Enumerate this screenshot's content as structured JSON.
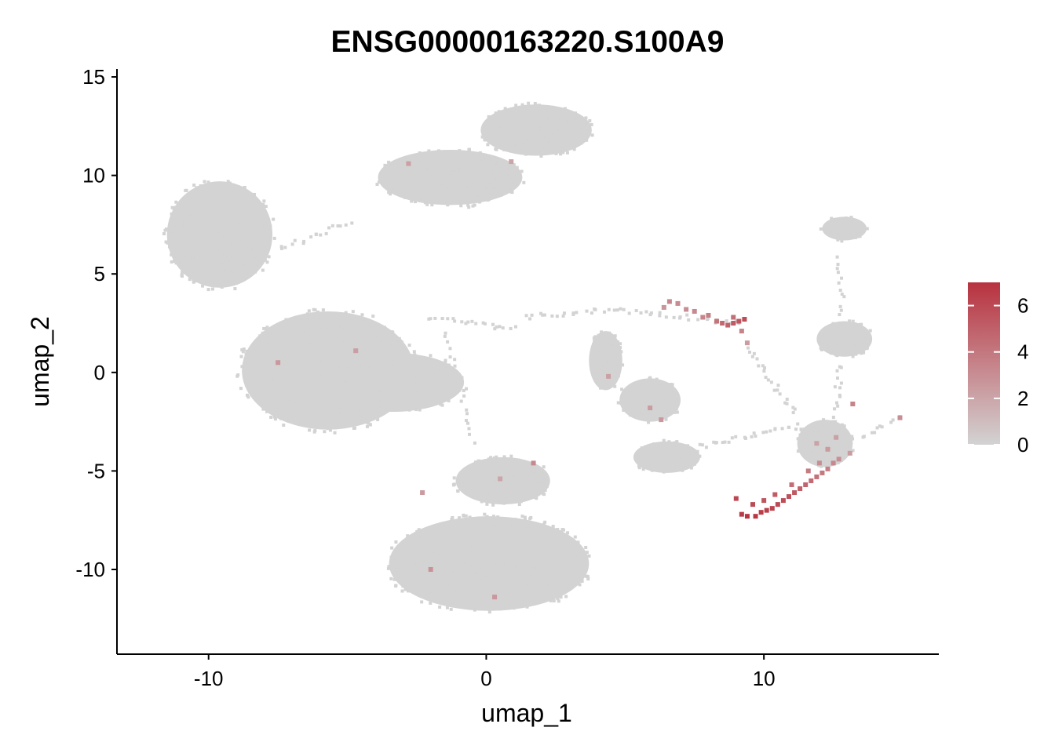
{
  "chart_data": {
    "type": "scatter",
    "title": "ENSG00000163220.S100A9",
    "xlabel": "umap_1",
    "ylabel": "umap_2",
    "xlim": [
      -13.3,
      16.3
    ],
    "ylim": [
      -14.3,
      15.4
    ],
    "xticks": [
      -10,
      0,
      10
    ],
    "xtick_labels": [
      "-10",
      "0",
      "10"
    ],
    "yticks": [
      -10,
      -5,
      0,
      5,
      10,
      15
    ],
    "ytick_labels": [
      "-10",
      "-5",
      "0",
      "5",
      "10",
      "15"
    ],
    "grid": false,
    "legend_position": "right",
    "color_scale": {
      "low_color": "#d3d3d3",
      "high_color": "#b8323f",
      "min": 0,
      "max": 7,
      "ticks": [
        0,
        2,
        4,
        6
      ],
      "tick_labels": [
        "0",
        "2",
        "4",
        "6"
      ]
    },
    "clusters": [
      {
        "name": "c1",
        "cx": -9.6,
        "cy": 7.0,
        "rx": 1.9,
        "ry": 2.7,
        "n": 300
      },
      {
        "name": "c2",
        "cx": -1.3,
        "cy": 9.9,
        "rx": 2.6,
        "ry": 1.4,
        "n": 220
      },
      {
        "name": "c3",
        "cx": 1.8,
        "cy": 12.3,
        "rx": 2.0,
        "ry": 1.3,
        "n": 200
      },
      {
        "name": "c4",
        "cx": -5.7,
        "cy": 0.1,
        "rx": 3.1,
        "ry": 3.0,
        "n": 400
      },
      {
        "name": "c5",
        "cx": -3.4,
        "cy": -0.5,
        "rx": 2.6,
        "ry": 1.5,
        "n": 160
      },
      {
        "name": "c6",
        "cx": 0.1,
        "cy": -9.7,
        "rx": 3.6,
        "ry": 2.4,
        "n": 360
      },
      {
        "name": "c7",
        "cx": 0.6,
        "cy": -5.5,
        "rx": 1.7,
        "ry": 1.2,
        "n": 120
      },
      {
        "name": "c8",
        "cx": 5.9,
        "cy": -1.4,
        "rx": 1.1,
        "ry": 1.1,
        "n": 80
      },
      {
        "name": "c9",
        "cx": 4.3,
        "cy": 0.6,
        "rx": 0.6,
        "ry": 1.5,
        "n": 60
      },
      {
        "name": "c10",
        "cx": 6.5,
        "cy": -4.3,
        "rx": 1.2,
        "ry": 0.8,
        "n": 70
      },
      {
        "name": "c11",
        "cx": 12.9,
        "cy": 1.7,
        "rx": 1.0,
        "ry": 0.9,
        "n": 80
      },
      {
        "name": "c12",
        "cx": 12.9,
        "cy": 7.3,
        "rx": 0.8,
        "ry": 0.6,
        "n": 50
      },
      {
        "name": "c13",
        "cx": 12.2,
        "cy": -3.6,
        "rx": 1.0,
        "ry": 1.2,
        "n": 110
      }
    ],
    "connectors": [
      {
        "from": [
          -7.5,
          6.2
        ],
        "to": [
          -4.8,
          7.7
        ],
        "n": 18
      },
      {
        "from": [
          -0.8,
          8.3
        ],
        "to": [
          0.9,
          9.3
        ],
        "n": 14
      },
      {
        "from": [
          -2.2,
          2.8
        ],
        "to": [
          1.1,
          2.2
        ],
        "n": 22
      },
      {
        "from": [
          -1.5,
          2.2
        ],
        "to": [
          -0.5,
          -3.7
        ],
        "n": 20
      },
      {
        "from": [
          1.3,
          2.8
        ],
        "to": [
          4.6,
          3.2
        ],
        "n": 20
      },
      {
        "from": [
          4.6,
          3.2
        ],
        "to": [
          9.3,
          2.5
        ],
        "n": 28
      },
      {
        "from": [
          7.6,
          -3.8
        ],
        "to": [
          11.3,
          -2.7
        ],
        "n": 26
      },
      {
        "from": [
          9.4,
          1.3
        ],
        "to": [
          11.2,
          -2.2
        ],
        "n": 22
      },
      {
        "from": [
          12.5,
          -2.5
        ],
        "to": [
          12.8,
          0.5
        ],
        "n": 14
      },
      {
        "from": [
          12.8,
          2.8
        ],
        "to": [
          12.7,
          6.0
        ],
        "n": 12
      },
      {
        "from": [
          13.4,
          -3.3
        ],
        "to": [
          14.9,
          -2.3
        ],
        "n": 10
      }
    ],
    "expressing_cells": [
      {
        "x": 9.7,
        "y": -7.3,
        "v": 6.8
      },
      {
        "x": 9.9,
        "y": -7.1,
        "v": 6.5
      },
      {
        "x": 10.1,
        "y": -7.0,
        "v": 6.4
      },
      {
        "x": 10.3,
        "y": -6.9,
        "v": 6.2
      },
      {
        "x": 10.5,
        "y": -6.7,
        "v": 6.0
      },
      {
        "x": 10.7,
        "y": -6.5,
        "v": 5.8
      },
      {
        "x": 10.9,
        "y": -6.3,
        "v": 5.6
      },
      {
        "x": 11.1,
        "y": -6.1,
        "v": 5.3
      },
      {
        "x": 11.3,
        "y": -5.9,
        "v": 5.0
      },
      {
        "x": 11.5,
        "y": -5.7,
        "v": 4.8
      },
      {
        "x": 11.7,
        "y": -5.5,
        "v": 4.5
      },
      {
        "x": 11.9,
        "y": -5.3,
        "v": 4.2
      },
      {
        "x": 12.1,
        "y": -5.1,
        "v": 3.9
      },
      {
        "x": 12.3,
        "y": -4.9,
        "v": 3.6
      },
      {
        "x": 12.5,
        "y": -4.6,
        "v": 3.2
      },
      {
        "x": 12.7,
        "y": -4.4,
        "v": 2.9
      },
      {
        "x": 9.4,
        "y": -7.3,
        "v": 6.9
      },
      {
        "x": 9.2,
        "y": -7.2,
        "v": 6.6
      },
      {
        "x": 9.6,
        "y": -6.7,
        "v": 5.9
      },
      {
        "x": 10.0,
        "y": -6.5,
        "v": 5.5
      },
      {
        "x": 10.4,
        "y": -6.2,
        "v": 5.2
      },
      {
        "x": 9.0,
        "y": -6.4,
        "v": 6.1
      },
      {
        "x": 11.0,
        "y": -5.7,
        "v": 4.4
      },
      {
        "x": 11.6,
        "y": -5.0,
        "v": 3.8
      },
      {
        "x": 12.0,
        "y": -4.6,
        "v": 3.0
      },
      {
        "x": 12.3,
        "y": -3.9,
        "v": 2.5
      },
      {
        "x": 11.9,
        "y": -3.6,
        "v": 2.1
      },
      {
        "x": 12.6,
        "y": -3.3,
        "v": 2.2
      },
      {
        "x": 13.1,
        "y": -4.1,
        "v": 2.4
      },
      {
        "x": 13.2,
        "y": -1.6,
        "v": 3.5
      },
      {
        "x": 9.3,
        "y": 2.7,
        "v": 5.8
      },
      {
        "x": 9.1,
        "y": 2.6,
        "v": 5.5
      },
      {
        "x": 8.9,
        "y": 2.5,
        "v": 5.2
      },
      {
        "x": 8.7,
        "y": 2.4,
        "v": 4.9
      },
      {
        "x": 8.5,
        "y": 2.5,
        "v": 4.6
      },
      {
        "x": 8.3,
        "y": 2.6,
        "v": 4.1
      },
      {
        "x": 8.0,
        "y": 2.9,
        "v": 3.6
      },
      {
        "x": 7.8,
        "y": 2.8,
        "v": 3.4
      },
      {
        "x": 7.5,
        "y": 3.1,
        "v": 3.2
      },
      {
        "x": 7.2,
        "y": 3.2,
        "v": 3.0
      },
      {
        "x": 6.9,
        "y": 3.5,
        "v": 3.1
      },
      {
        "x": 6.6,
        "y": 3.6,
        "v": 3.3
      },
      {
        "x": 9.2,
        "y": 2.1,
        "v": 3.5
      },
      {
        "x": 9.4,
        "y": 1.5,
        "v": 2.4
      },
      {
        "x": 8.9,
        "y": 2.8,
        "v": 4.3
      },
      {
        "x": 6.4,
        "y": 3.3,
        "v": 2.7
      },
      {
        "x": 1.7,
        "y": -4.6,
        "v": 3.2
      },
      {
        "x": 0.5,
        "y": -5.4,
        "v": 2.0
      },
      {
        "x": -2.8,
        "y": 10.6,
        "v": 2.2
      },
      {
        "x": 0.9,
        "y": 10.7,
        "v": 2.0
      },
      {
        "x": -7.5,
        "y": 0.5,
        "v": 2.6
      },
      {
        "x": -4.7,
        "y": 1.1,
        "v": 2.3
      },
      {
        "x": -2.3,
        "y": -6.1,
        "v": 2.4
      },
      {
        "x": -2.0,
        "y": -10.0,
        "v": 2.8
      },
      {
        "x": 0.3,
        "y": -11.4,
        "v": 2.6
      },
      {
        "x": 5.9,
        "y": -1.8,
        "v": 2.4
      },
      {
        "x": 4.4,
        "y": -0.2,
        "v": 2.2
      },
      {
        "x": 6.3,
        "y": -2.4,
        "v": 2.6
      },
      {
        "x": 14.9,
        "y": -2.3,
        "v": 3.0
      }
    ]
  }
}
